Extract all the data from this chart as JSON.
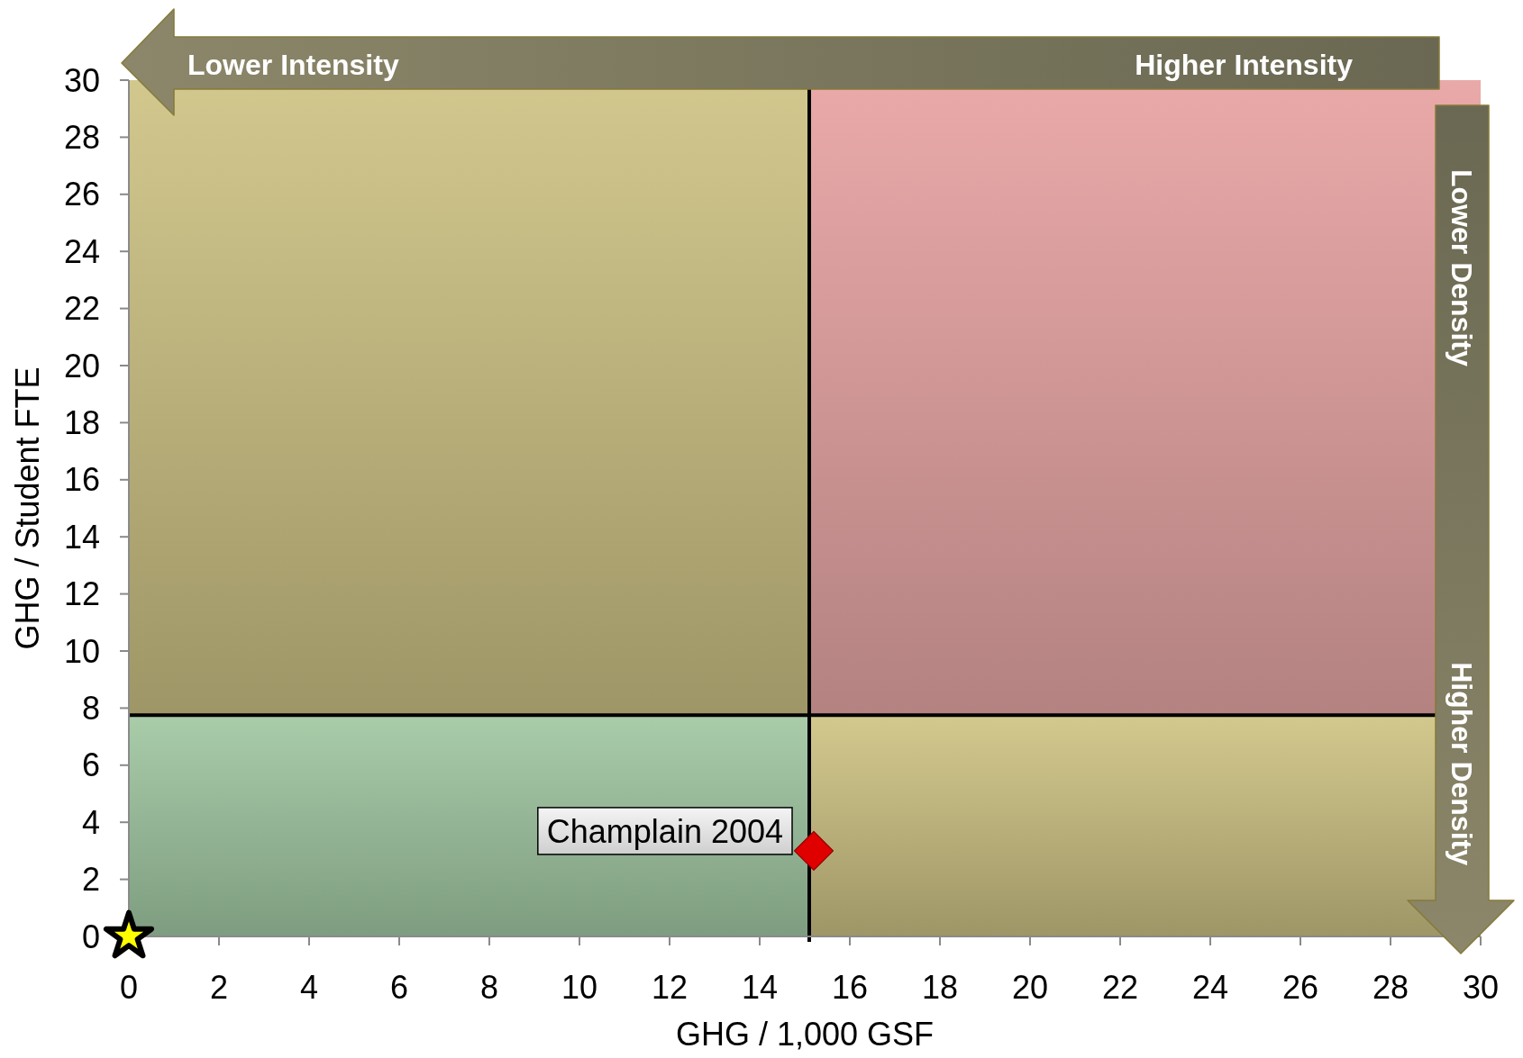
{
  "chart_data": {
    "type": "scatter",
    "xlabel": "GHG / 1,000 GSF",
    "ylabel": "GHG / Student FTE",
    "xlim": [
      0,
      30
    ],
    "ylim": [
      0,
      30
    ],
    "xticks": [
      0,
      2,
      4,
      6,
      8,
      10,
      12,
      14,
      16,
      18,
      20,
      22,
      24,
      26,
      28,
      30
    ],
    "yticks": [
      0,
      2,
      4,
      6,
      8,
      10,
      12,
      14,
      16,
      18,
      20,
      22,
      24,
      26,
      28,
      30
    ],
    "series": [
      {
        "name": "Champlain 2004",
        "color": "#e00000",
        "marker": "diamond",
        "x": [
          15.2
        ],
        "values": [
          3.0
        ]
      },
      {
        "color": "#ffff00",
        "marker": "star",
        "x": [
          0
        ],
        "values": [
          0
        ]
      }
    ],
    "ref_lines": [
      {
        "axis": "x",
        "value": 15.1,
        "color": "#000000"
      },
      {
        "axis": "y",
        "value": 7.75,
        "color": "#000000"
      }
    ],
    "annotations": [
      "Lower Intensity",
      "Higher Intensity",
      "Lower Density",
      "Higher Density"
    ]
  }
}
